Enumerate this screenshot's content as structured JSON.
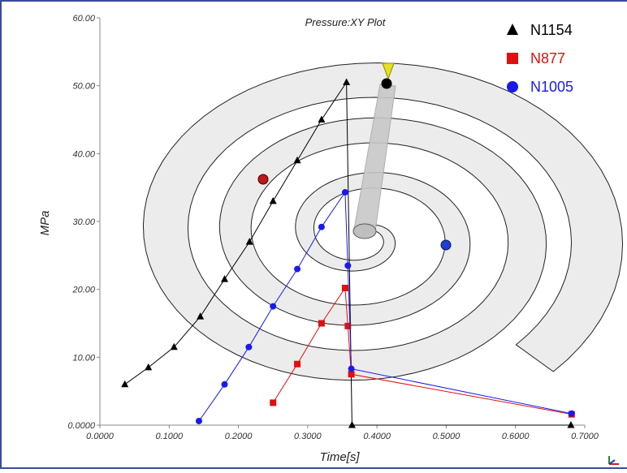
{
  "chart_data": {
    "type": "line",
    "title": "Pressure:XY Plot",
    "xlabel": "Time[s]",
    "ylabel": "MPa",
    "xlim": [
      0,
      0.7
    ],
    "ylim": [
      0,
      60
    ],
    "x_tick_labels": [
      "0.0000",
      "0.1000",
      "0.2000",
      "0.3000",
      "0.4000",
      "0.5000",
      "0.6000",
      "0.7000"
    ],
    "y_tick_labels": [
      "0.0000",
      "10.00",
      "20.00",
      "30.00",
      "40.00",
      "50.00",
      "60.00"
    ],
    "legend_position": "top-right",
    "grid": false,
    "series": [
      {
        "name": "N1154",
        "color": "#000000",
        "marker": "triangle",
        "points": [
          [
            0.036,
            6.0
          ],
          [
            0.07,
            8.5
          ],
          [
            0.107,
            11.5
          ],
          [
            0.145,
            16.0
          ],
          [
            0.18,
            21.5
          ],
          [
            0.216,
            27.0
          ],
          [
            0.25,
            33.0
          ],
          [
            0.285,
            39.0
          ],
          [
            0.32,
            45.0
          ],
          [
            0.356,
            50.5
          ],
          [
            0.364,
            0.0
          ],
          [
            0.68,
            0.0
          ]
        ]
      },
      {
        "name": "N877",
        "color": "#e01010",
        "marker": "square",
        "points": [
          [
            0.25,
            3.3
          ],
          [
            0.285,
            9.0
          ],
          [
            0.32,
            15.0
          ],
          [
            0.354,
            20.2
          ],
          [
            0.358,
            14.6
          ],
          [
            0.363,
            7.5
          ],
          [
            0.681,
            1.6
          ]
        ]
      },
      {
        "name": "N1005",
        "color": "#1a1aee",
        "marker": "circle",
        "points": [
          [
            0.143,
            0.6
          ],
          [
            0.18,
            6.0
          ],
          [
            0.215,
            11.5
          ],
          [
            0.25,
            17.5
          ],
          [
            0.285,
            23.0
          ],
          [
            0.32,
            29.2
          ],
          [
            0.354,
            34.3
          ],
          [
            0.358,
            23.5
          ],
          [
            0.363,
            8.3
          ],
          [
            0.681,
            1.7
          ]
        ]
      }
    ],
    "background": {
      "spiral_fill": "#ececec",
      "spiral_stroke": "#222222",
      "cone_fill": "#c8c8c8",
      "pin_head_color": "#e8e020",
      "red_dot_color": "#c01818",
      "blue_dot_color": "#1f3fd0",
      "black_dot_color": "#000000"
    }
  }
}
